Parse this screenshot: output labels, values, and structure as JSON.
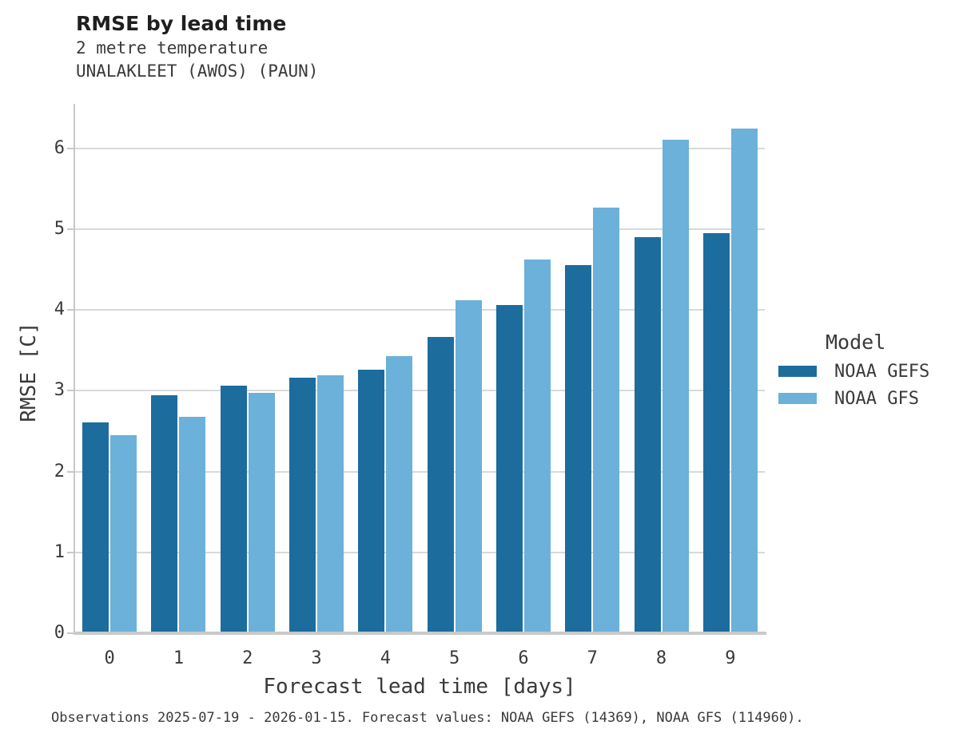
{
  "chart_data": {
    "type": "bar",
    "title": "RMSE by lead time",
    "subtitle": [
      "2 metre temperature",
      "UNALAKLEET (AWOS) (PAUN)"
    ],
    "categories": [
      "0",
      "1",
      "2",
      "3",
      "4",
      "5",
      "6",
      "7",
      "8",
      "9"
    ],
    "series": [
      {
        "name": "NOAA GEFS",
        "color": "#1c6d9d",
        "values": [
          2.61,
          2.94,
          3.06,
          3.16,
          3.26,
          3.67,
          4.06,
          4.55,
          4.9,
          4.95
        ]
      },
      {
        "name": "NOAA GFS",
        "color": "#6bb1d9",
        "values": [
          2.45,
          2.68,
          2.97,
          3.19,
          3.43,
          4.12,
          4.62,
          5.27,
          6.11,
          6.24
        ]
      }
    ],
    "xlabel": "Forecast lead time [days]",
    "ylabel": "RMSE [C]",
    "ylim": [
      0,
      6.55
    ],
    "yticks": [
      0,
      1,
      2,
      3,
      4,
      5,
      6
    ],
    "grid": true,
    "legend": {
      "title": "Model",
      "position": "right"
    },
    "colors": {
      "gridline": "#d9d9d9",
      "axis": "#c9c9c9",
      "title_text": "#1f1f1f",
      "text": "#3a3a3a",
      "background": "#ffffff"
    }
  },
  "footer": {
    "note": "Observations 2025-07-19 - 2026-01-15. Forecast values: NOAA GEFS (14369), NOAA GFS (114960)."
  }
}
